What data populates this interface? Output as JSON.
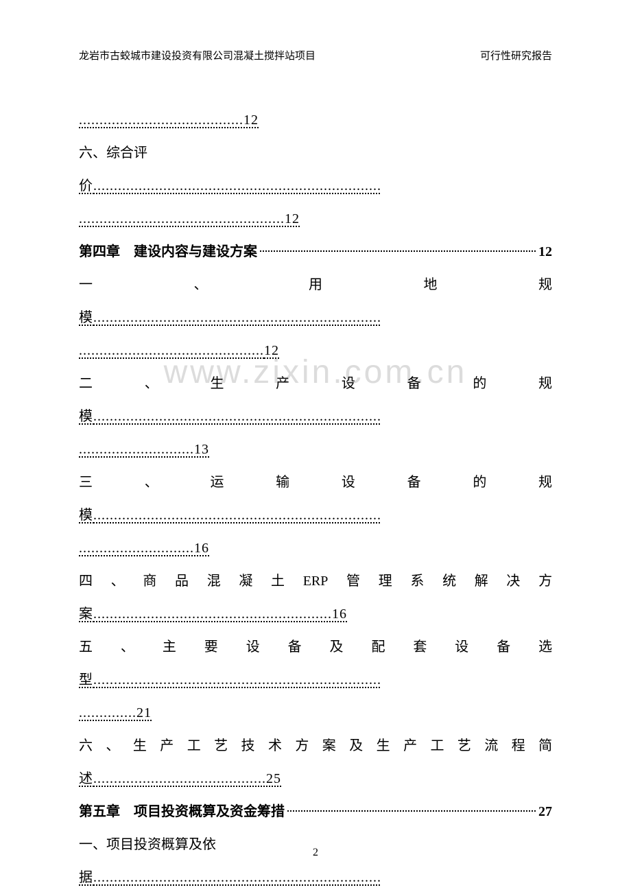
{
  "header": {
    "left": "龙岩市古蛟城市建设投资有限公司混凝土搅拌站项目",
    "right": "可行性研究报告"
  },
  "watermark": "www.zixin.com.cn",
  "page_number": "2",
  "colors": {
    "text": "#000000",
    "background": "#ffffff",
    "watermark": "#dcdcdc"
  },
  "typography": {
    "header_fontsize": 15,
    "body_fontsize": 20,
    "watermark_fontsize": 48,
    "page_number_fontsize": 16,
    "line_height": 2.4,
    "font_family": "SimSun"
  },
  "toc": {
    "line1_dots": "12",
    "item6": "六、综合评",
    "item6_cont": "价",
    "item6_page": "12",
    "chapter4_title": "第四章　建设内容与建设方案",
    "chapter4_page": "12",
    "item4_1_parts": [
      "一",
      "、",
      "用",
      "地",
      "规"
    ],
    "item4_1_cont": "模",
    "item4_1_page": "12",
    "item4_2_parts": [
      "二",
      "、",
      "生",
      "产",
      "设",
      "备",
      "的",
      "规"
    ],
    "item4_2_cont": "模",
    "item4_2_page": "13",
    "item4_3_parts": [
      "三",
      "、",
      "运",
      "输",
      "设",
      "备",
      "的",
      "规"
    ],
    "item4_3_cont": "模",
    "item4_3_page": "16",
    "item4_4_parts": [
      "四",
      "、",
      "商",
      "品",
      "混",
      "凝",
      "土",
      "ERP",
      "管",
      "理",
      "系",
      "统",
      "解",
      "决",
      "方"
    ],
    "item4_4_cont": "案",
    "item4_4_page": "16",
    "item4_5_parts": [
      "五",
      "、",
      "主",
      "要",
      "设",
      "备",
      "及",
      "配",
      "套",
      "设",
      "备",
      "选"
    ],
    "item4_5_cont": "型",
    "item4_5_page": "21",
    "item4_6_parts": [
      "六",
      "、",
      "生",
      "产",
      "工",
      "艺",
      "技",
      "术",
      "方",
      "案",
      "及",
      "生",
      "产",
      "工",
      "艺",
      "流",
      "程",
      "简"
    ],
    "item4_6_cont": "述",
    "item4_6_page": "25",
    "chapter5_title": "第五章　项目投资概算及资金筹措",
    "chapter5_page": "27",
    "item5_1": "一、项目投资概算及依",
    "item5_1_cont": "据"
  }
}
